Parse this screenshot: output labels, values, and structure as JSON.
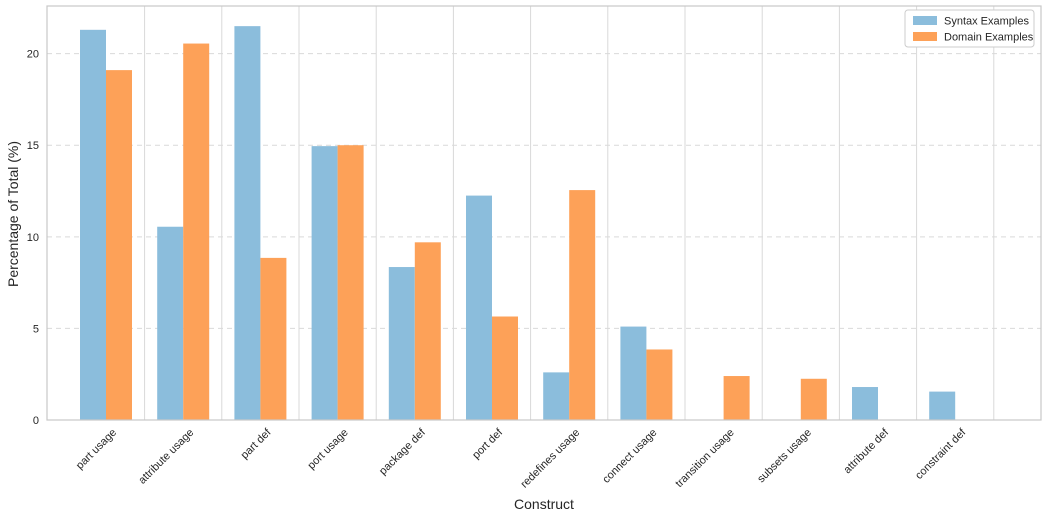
{
  "colors": {
    "syntax": "#8BBDDC",
    "domain": "#FDA158",
    "grid": "#d9d9d9",
    "frame": "#c8c8c8",
    "text": "#262626"
  },
  "chart_data": {
    "type": "bar",
    "title": "",
    "xlabel": "Construct",
    "ylabel": "Percentage of Total (%)",
    "ylim": [
      0,
      22.6
    ],
    "yticks": [
      "0",
      "5",
      "10",
      "15",
      "20"
    ],
    "grid": {
      "y": "dashed",
      "x": "solid"
    },
    "legend_position": "top-right",
    "categories": [
      "part usage",
      "attribute usage",
      "part def",
      "port usage",
      "package def",
      "port def",
      "redefines usage",
      "connect usage",
      "transition usage",
      "subsets usage",
      "attribute def",
      "constraint def"
    ],
    "series": [
      {
        "name": "Syntax Examples",
        "color": "#8BBDDC",
        "values": [
          21.3,
          10.55,
          21.5,
          14.95,
          8.35,
          12.25,
          2.6,
          5.1,
          0,
          0,
          1.8,
          1.55
        ]
      },
      {
        "name": "Domain Examples",
        "color": "#FDA158",
        "values": [
          19.1,
          20.55,
          8.85,
          15.0,
          9.7,
          5.65,
          12.55,
          3.85,
          2.4,
          2.25,
          0,
          0
        ]
      }
    ]
  }
}
